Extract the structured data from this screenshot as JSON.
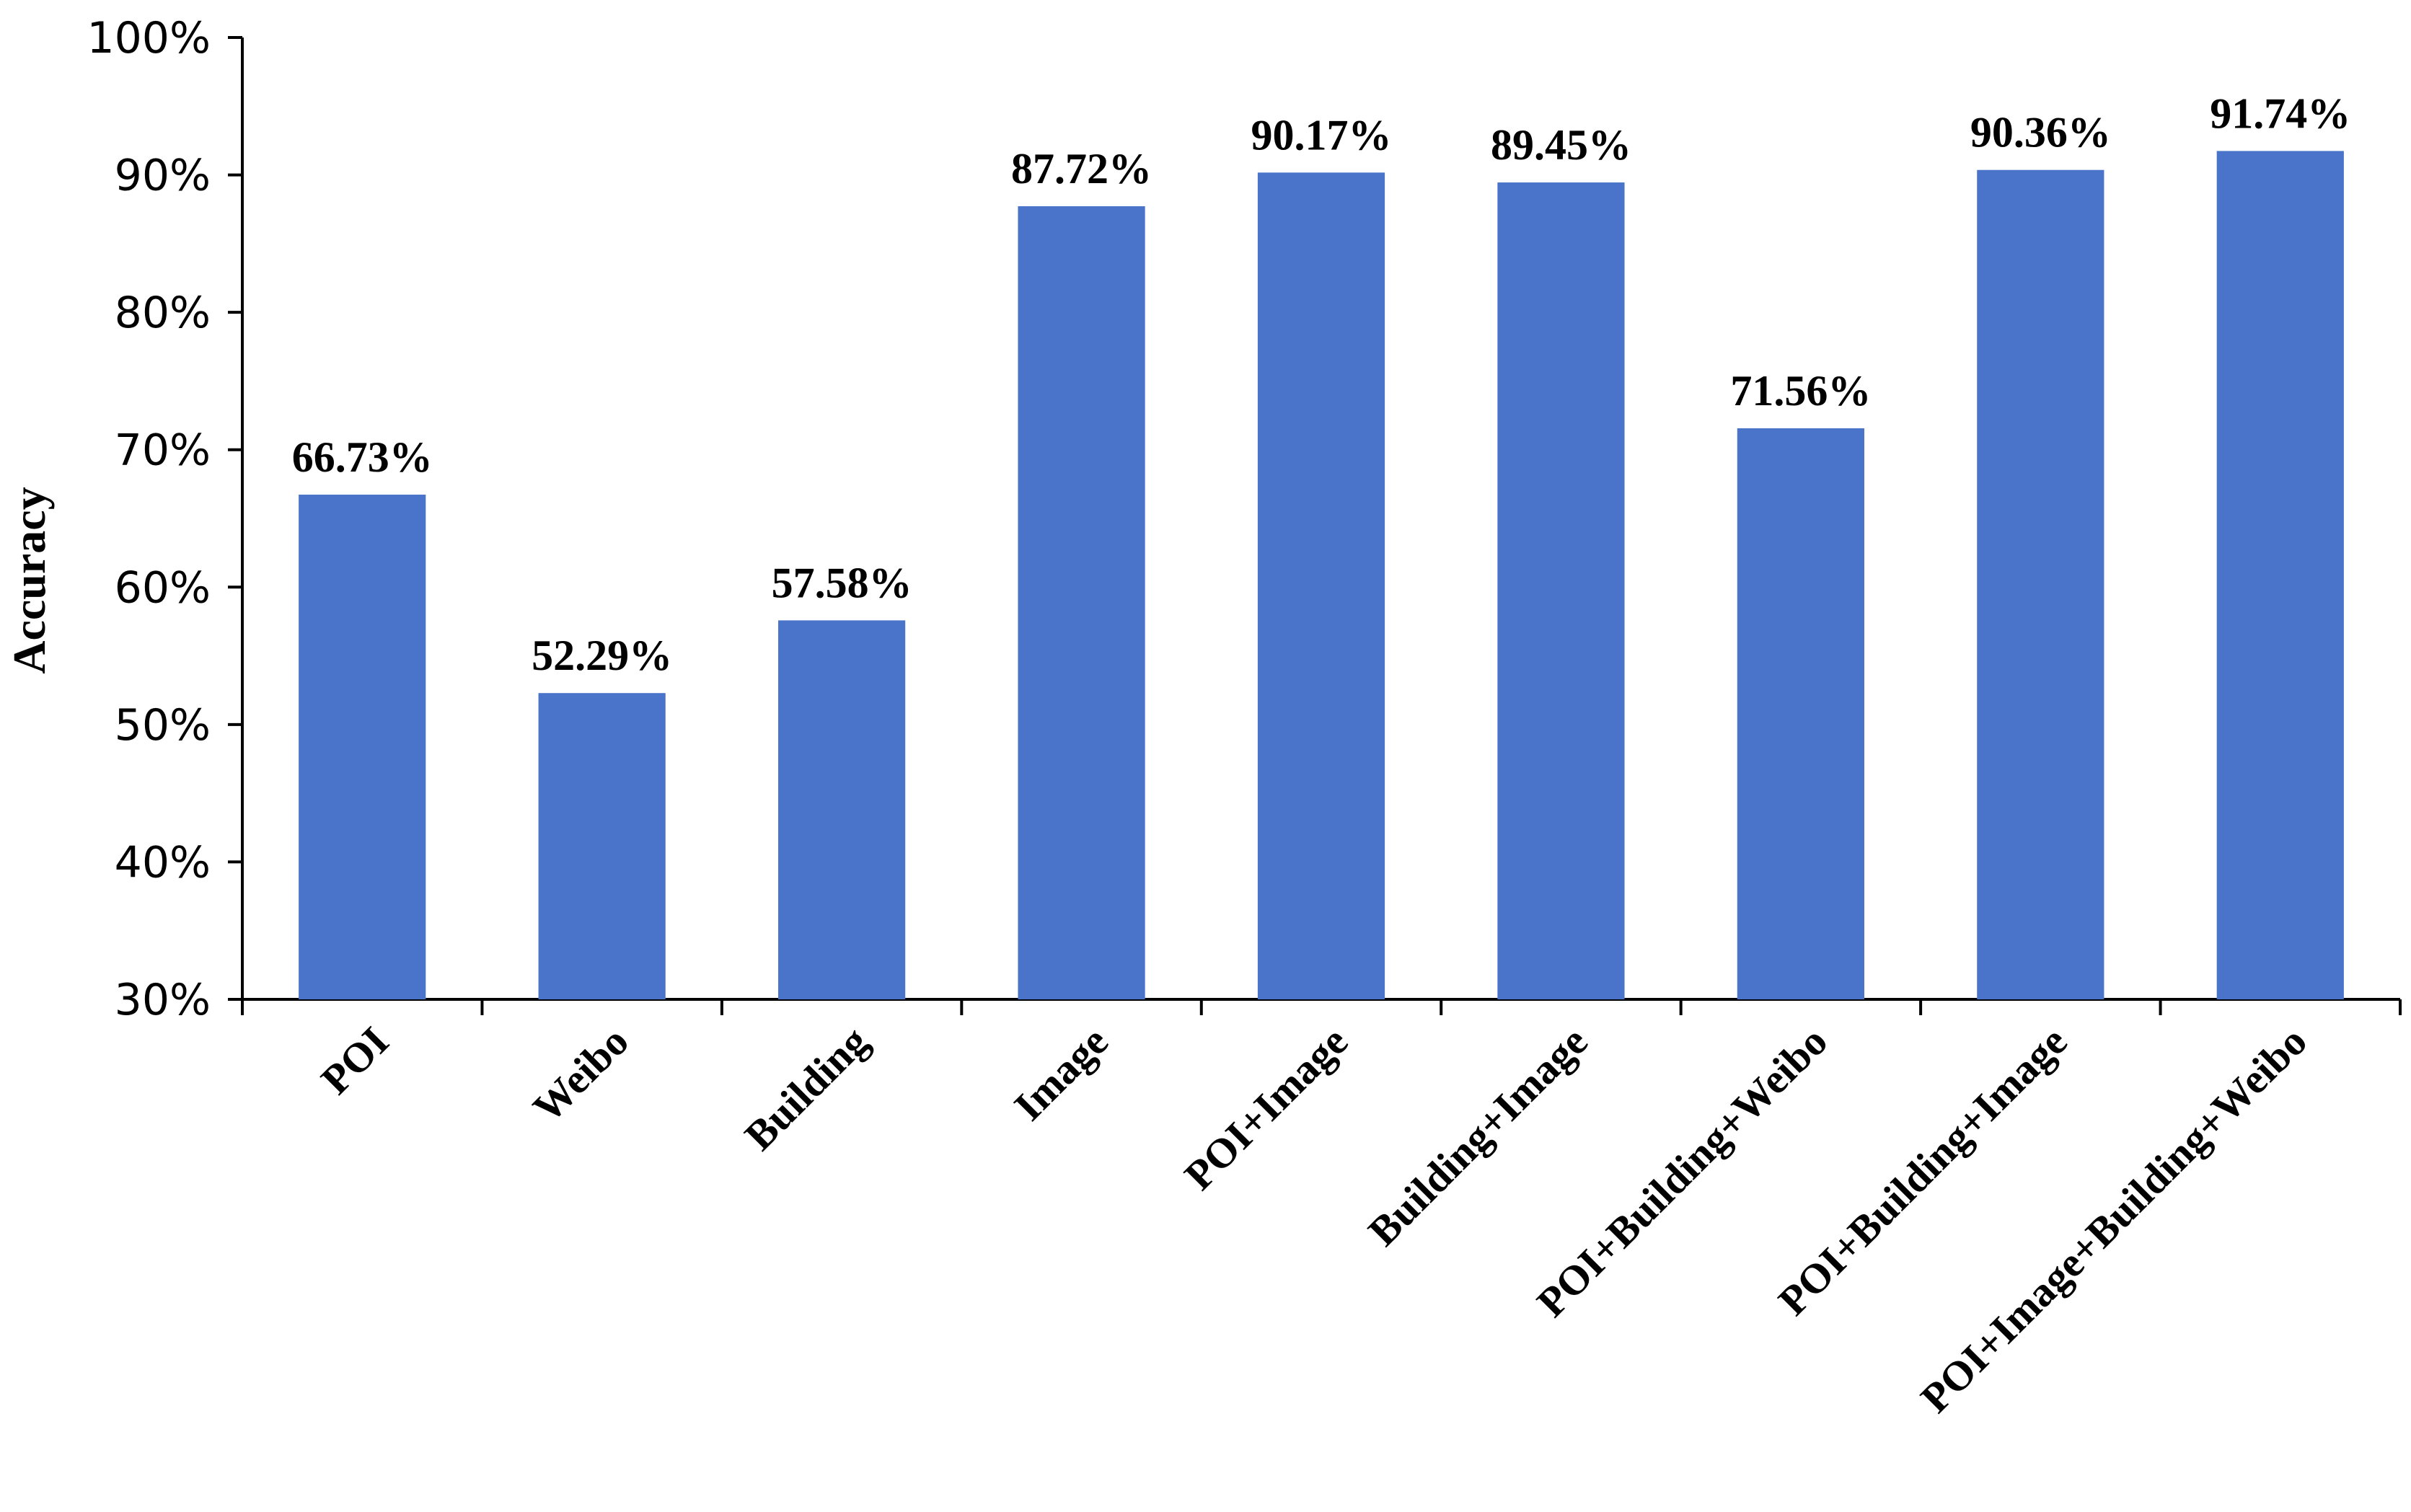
{
  "chart_data": {
    "type": "bar",
    "title": "",
    "xlabel": "",
    "ylabel": "Accuracy",
    "categories": [
      "POI",
      "Weibo",
      "Building",
      "Image",
      "POI+Image",
      "Building+Image",
      "POI+Building+Weibo",
      "POI+Building+Image",
      "POI+Image+Building+Weibo"
    ],
    "values": [
      66.73,
      52.29,
      57.58,
      87.72,
      90.17,
      89.45,
      71.56,
      90.36,
      91.74
    ],
    "value_labels": [
      "66.73%",
      "52.29%",
      "57.58%",
      "87.72%",
      "90.17%",
      "89.45%",
      "71.56%",
      "90.36%",
      "91.74%"
    ],
    "ylim": [
      30,
      100
    ],
    "yticks": [
      30,
      40,
      50,
      60,
      70,
      80,
      90,
      100
    ],
    "ytick_labels": [
      "30%",
      "40%",
      "50%",
      "60%",
      "70%",
      "80%",
      "90%",
      "100%"
    ],
    "bar_color": "#4a74c9",
    "grid": false,
    "legend": "none"
  }
}
